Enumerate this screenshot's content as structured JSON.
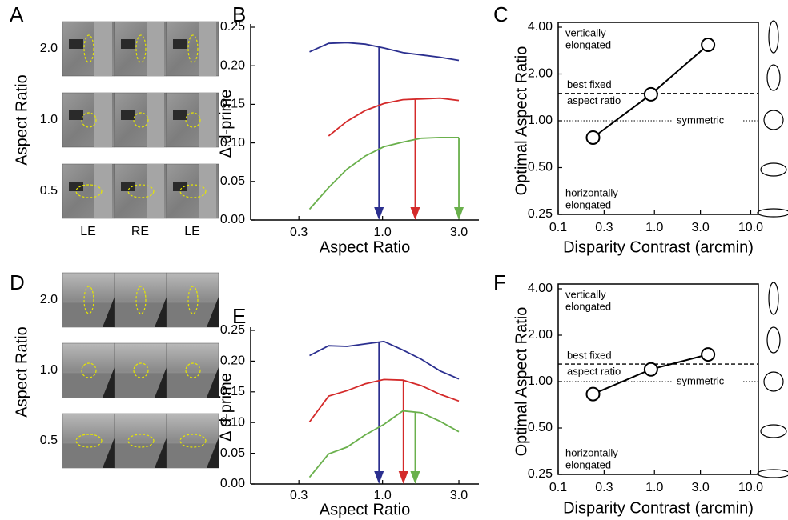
{
  "image_panels": [
    {
      "panel": "A",
      "ylabel": "Aspect Ratio",
      "rows": [
        "2.0",
        "1.0",
        "0.5"
      ],
      "columns": [
        "LE",
        "RE",
        "LE"
      ]
    },
    {
      "panel": "D",
      "ylabel": "Aspect Ratio",
      "rows": [
        "2.0",
        "1.0",
        "0.5"
      ]
    }
  ],
  "chart_data": [
    {
      "panel": "B",
      "type": "line",
      "xlabel": "Aspect Ratio",
      "ylabel": "Δ d-prime",
      "xlog": true,
      "xlim": [
        0.15,
        4
      ],
      "ylim": [
        0,
        0.25
      ],
      "xticks": [
        0.3,
        {
          "value": 1,
          "label": "1.0"
        },
        {
          "value": 3,
          "label": "3.0"
        }
      ],
      "yticks": [
        {
          "value": 0,
          "label": "0.00"
        },
        {
          "value": 0.05,
          "label": "0.05"
        },
        {
          "value": 0.1,
          "label": "0.10"
        },
        {
          "value": 0.15,
          "label": "0.15"
        },
        {
          "value": 0.2,
          "label": "0.20"
        },
        {
          "value": 0.25,
          "label": "0.25"
        }
      ],
      "x": [
        0.35,
        0.46,
        0.6,
        0.78,
        1.02,
        1.34,
        1.75,
        2.29,
        3.0
      ],
      "series": [
        {
          "color": "#2b2f8f",
          "values": [
            0.218,
            0.229,
            0.23,
            0.228,
            0.223,
            0.217,
            0.214,
            0.211,
            0.207
          ],
          "optimum": 0.95
        },
        {
          "color": "#d42a2a",
          "values": [
            null,
            0.109,
            0.128,
            0.142,
            0.151,
            0.156,
            0.157,
            0.158,
            0.155
          ],
          "optimum": 1.6
        },
        {
          "color": "#6ab04c",
          "values": [
            0.014,
            0.042,
            0.066,
            0.083,
            0.095,
            0.101,
            0.106,
            0.107,
            0.107
          ],
          "optimum": 3.0
        }
      ]
    },
    {
      "panel": "C",
      "type": "line",
      "markers": true,
      "box": true,
      "xlabel": "Disparity Contrast (arcmin)",
      "ylabel": "Optimal Aspect Ratio",
      "xlog": true,
      "ylog": true,
      "xlim": [
        0.1,
        12
      ],
      "ylim": [
        0.25,
        4
      ],
      "xticks": [
        0.1,
        0.3,
        {
          "value": 1,
          "label": "1.0"
        },
        {
          "value": 3,
          "label": "3.0"
        },
        {
          "value": 10,
          "label": "10.0"
        }
      ],
      "yticks": [
        {
          "value": 0.25,
          "label": "0.25"
        },
        {
          "value": 0.5,
          "label": "0.50"
        },
        {
          "value": 1,
          "label": "1.00"
        },
        {
          "value": 2,
          "label": "2.00"
        },
        {
          "value": 4,
          "label": "4.00"
        }
      ],
      "x": [
        0.23,
        0.92,
        3.6
      ],
      "series": [
        {
          "color": "#000000",
          "values": [
            0.78,
            1.48,
            3.08
          ]
        }
      ],
      "upper_note": [
        "vertically",
        "elongated"
      ],
      "lower_note": [
        "horizontally",
        "elongated"
      ],
      "reference_lines": [
        {
          "label": [
            "best fixed",
            "aspect ratio"
          ],
          "value": 1.5,
          "style": "dashed"
        },
        {
          "label": [
            "symmetric"
          ],
          "value": 1,
          "style": "dotted"
        }
      ]
    },
    {
      "panel": "E",
      "type": "line",
      "xlabel": "Aspect Ratio",
      "ylabel": "Δ d-prime",
      "xlog": true,
      "xlim": [
        0.15,
        4
      ],
      "ylim": [
        0,
        0.25
      ],
      "xticks": [
        0.3,
        {
          "value": 1,
          "label": "1.0"
        },
        {
          "value": 3,
          "label": "3.0"
        }
      ],
      "yticks": [
        {
          "value": 0,
          "label": "0.00"
        },
        {
          "value": 0.05,
          "label": "0.05"
        },
        {
          "value": 0.1,
          "label": "0.10"
        },
        {
          "value": 0.15,
          "label": "0.15"
        },
        {
          "value": 0.2,
          "label": "0.20"
        },
        {
          "value": 0.25,
          "label": "0.25"
        }
      ],
      "x": [
        0.35,
        0.46,
        0.6,
        0.78,
        1.02,
        1.34,
        1.75,
        2.29,
        3.0
      ],
      "series": [
        {
          "color": "#2b2f8f",
          "values": [
            0.209,
            0.225,
            0.224,
            0.228,
            0.232,
            0.218,
            0.203,
            0.184,
            0.171
          ],
          "optimum": 0.95
        },
        {
          "color": "#d42a2a",
          "values": [
            0.101,
            0.143,
            0.152,
            0.163,
            0.17,
            0.169,
            0.16,
            0.146,
            0.135
          ],
          "optimum": 1.35
        },
        {
          "color": "#6ab04c",
          "values": [
            0.011,
            0.049,
            0.06,
            0.08,
            0.097,
            0.119,
            0.116,
            0.102,
            0.085
          ],
          "optimum": 1.6
        }
      ]
    },
    {
      "panel": "F",
      "type": "line",
      "markers": true,
      "box": true,
      "xlabel": "Disparity Contrast (arcmin)",
      "ylabel": "Optimal Aspect Ratio",
      "xlog": true,
      "ylog": true,
      "xlim": [
        0.1,
        12
      ],
      "ylim": [
        0.25,
        4
      ],
      "xticks": [
        0.1,
        0.3,
        {
          "value": 1,
          "label": "1.0"
        },
        {
          "value": 3,
          "label": "3.0"
        },
        {
          "value": 10,
          "label": "10.0"
        }
      ],
      "yticks": [
        {
          "value": 0.25,
          "label": "0.25"
        },
        {
          "value": 0.5,
          "label": "0.50"
        },
        {
          "value": 1,
          "label": "1.00"
        },
        {
          "value": 2,
          "label": "2.00"
        },
        {
          "value": 4,
          "label": "4.00"
        }
      ],
      "x": [
        0.23,
        0.92,
        3.6
      ],
      "series": [
        {
          "color": "#000000",
          "values": [
            0.83,
            1.2,
            1.5
          ]
        }
      ],
      "upper_note": [
        "vertically",
        "elongated"
      ],
      "lower_note": [
        "horizontally",
        "elongated"
      ],
      "reference_lines": [
        {
          "label": [
            "best fixed",
            "aspect ratio"
          ],
          "value": 1.3,
          "style": "dashed"
        },
        {
          "label": [
            "symmetric"
          ],
          "value": 1,
          "style": "dotted"
        }
      ]
    }
  ]
}
